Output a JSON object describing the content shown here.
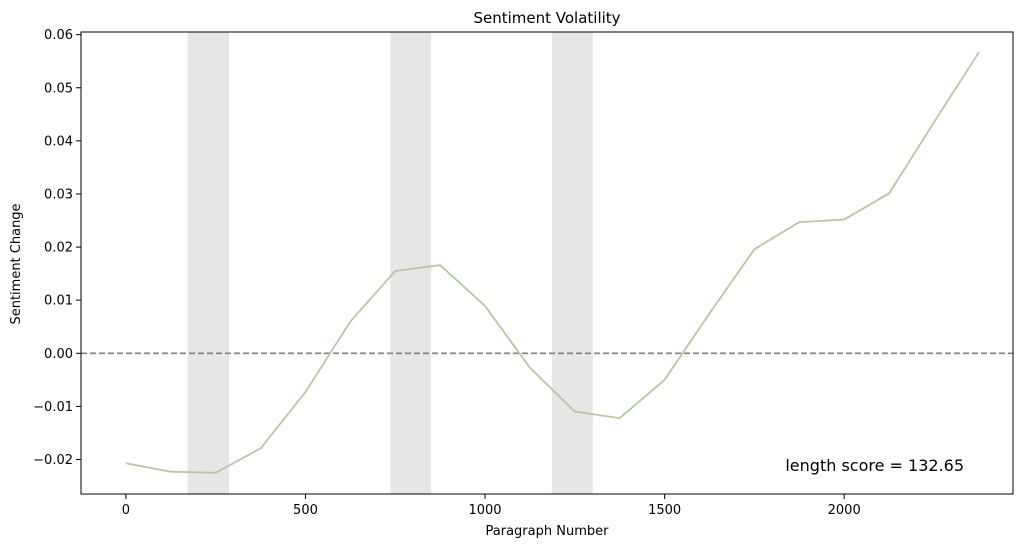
{
  "chart_data": {
    "type": "line",
    "title": "Sentiment Volatility",
    "xlabel": "Paragraph Number",
    "ylabel": "Sentiment Change",
    "xlim": [
      -125,
      2470
    ],
    "ylim": [
      -0.0265,
      0.0605
    ],
    "x_ticks": [
      0,
      500,
      1000,
      1500,
      2000
    ],
    "x_tick_labels": [
      "0",
      "500",
      "1000",
      "1500",
      "2000"
    ],
    "y_ticks": [
      -0.02,
      -0.01,
      0.0,
      0.01,
      0.02,
      0.03,
      0.04,
      0.05,
      0.06
    ],
    "y_tick_labels": [
      "−0.02",
      "−0.01",
      "0.00",
      "0.01",
      "0.02",
      "0.03",
      "0.04",
      "0.05",
      "0.06"
    ],
    "grid": false,
    "series": [
      {
        "color": "#b2cb9e",
        "x": [
          0,
          125,
          250,
          375,
          500,
          625,
          750,
          875,
          1000,
          1125,
          1250,
          1375,
          1500,
          1625,
          1750,
          1875,
          2000,
          2125,
          2250,
          2375
        ],
        "y": [
          -0.0207,
          -0.0223,
          -0.0225,
          -0.0179,
          -0.0073,
          0.006,
          0.0155,
          0.0166,
          0.0089,
          -0.0027,
          -0.011,
          -0.0122,
          -0.005,
          0.0075,
          0.0196,
          0.0247,
          0.0252,
          0.0301,
          0.0435,
          0.0567
        ]
      }
    ],
    "shaded_regions": [
      {
        "x_start": 172,
        "x_end": 287
      },
      {
        "x_start": 736,
        "x_end": 850
      },
      {
        "x_start": 1186,
        "x_end": 1300
      }
    ],
    "reference_line": {
      "y": 0.0,
      "style": "dashed",
      "color": "#808080"
    },
    "annotation": {
      "text": "length score = 132.65",
      "position": "bottom-right"
    }
  }
}
